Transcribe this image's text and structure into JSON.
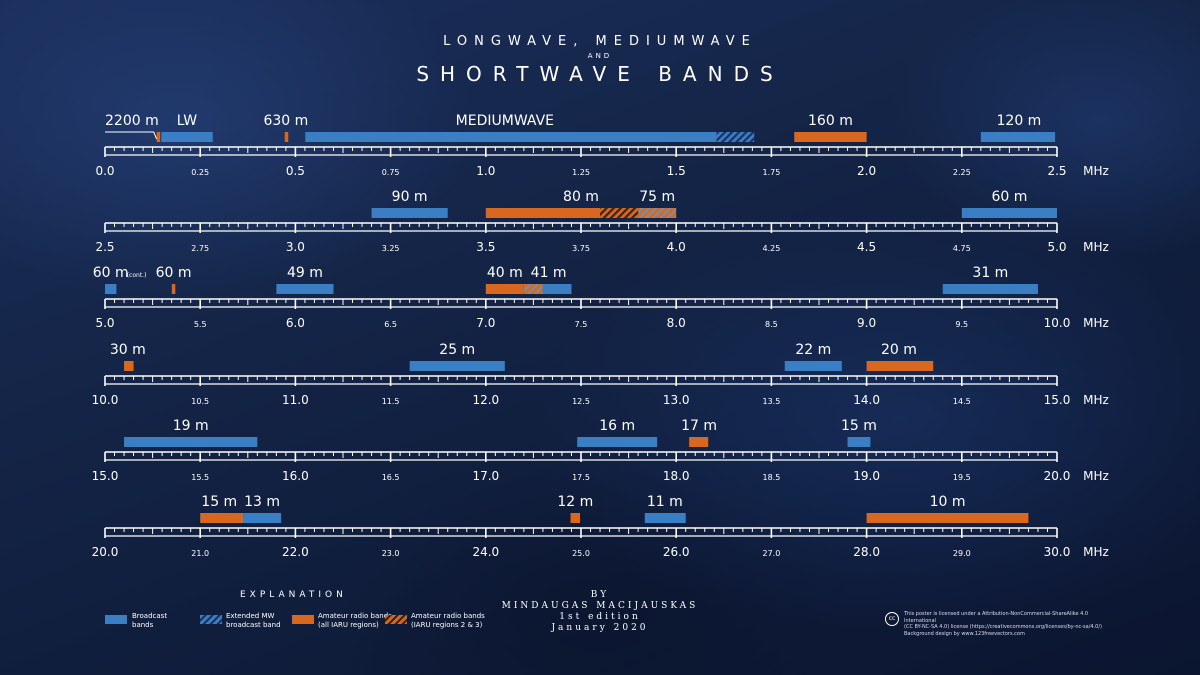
{
  "title": {
    "line1": "LONGWAVE, MEDIUMWAVE",
    "and": "AND",
    "line2": "SHORTWAVE BANDS"
  },
  "unit": "MHz",
  "colors": {
    "broadcast": "#3a7ec4",
    "amateur": "#d8681f",
    "hatch": "#1d3160"
  },
  "chart_data": {
    "type": "bar",
    "title": "LONGWAVE, MEDIUMWAVE AND SHORTWAVE BANDS",
    "xlabel": "MHz",
    "rows": [
      {
        "range": [
          0.0,
          2.5
        ],
        "ticks": [
          "0.0",
          "0.25",
          "0.5",
          "0.75",
          "1.0",
          "1.25",
          "1.5",
          "1.75",
          "2.0",
          "2.25",
          "2.5"
        ],
        "bands": [
          {
            "start": 0.1357,
            "end": 0.1378,
            "kind": "amateur"
          },
          {
            "start": 0.148,
            "end": 0.283,
            "kind": "broadcast"
          },
          {
            "start": 0.472,
            "end": 0.479,
            "kind": "amateur"
          },
          {
            "start": 0.526,
            "end": 1.606,
            "kind": "broadcast"
          },
          {
            "start": 1.606,
            "end": 1.705,
            "kind": "broadcast-ext"
          },
          {
            "start": 1.81,
            "end": 2.0,
            "kind": "amateur"
          },
          {
            "start": 2.3,
            "end": 2.495,
            "kind": "broadcast"
          }
        ],
        "labels": [
          {
            "text": "2200 m",
            "at": 0.0,
            "anchor": "start"
          },
          {
            "text": "LW",
            "at": 0.215,
            "anchor": "middle"
          },
          {
            "text": "630 m",
            "at": 0.475,
            "anchor": "middle"
          },
          {
            "text": "MEDIUMWAVE",
            "at": 1.05,
            "anchor": "middle"
          },
          {
            "text": "160 m",
            "at": 1.905,
            "anchor": "middle"
          },
          {
            "text": "120 m",
            "at": 2.4,
            "anchor": "middle"
          }
        ]
      },
      {
        "range": [
          2.5,
          5.0
        ],
        "ticks": [
          "2.5",
          "2.75",
          "3.0",
          "3.25",
          "3.5",
          "3.75",
          "4.0",
          "4.25",
          "4.5",
          "4.75",
          "5.0"
        ],
        "bands": [
          {
            "start": 3.2,
            "end": 3.4,
            "kind": "broadcast"
          },
          {
            "start": 3.5,
            "end": 3.8,
            "kind": "amateur"
          },
          {
            "start": 3.8,
            "end": 3.9,
            "kind": "amateur-r23"
          },
          {
            "start": 3.9,
            "end": 4.0,
            "kind": "amateur-broadcast"
          },
          {
            "start": 4.75,
            "end": 5.0,
            "kind": "broadcast"
          }
        ],
        "labels": [
          {
            "text": "90 m",
            "at": 3.3,
            "anchor": "middle"
          },
          {
            "text": "80 m",
            "at": 3.75,
            "anchor": "middle"
          },
          {
            "text": "75 m",
            "at": 3.95,
            "anchor": "middle"
          },
          {
            "text": "60 m",
            "at": 4.875,
            "anchor": "middle"
          }
        ]
      },
      {
        "range": [
          5.0,
          10.0
        ],
        "ticks": [
          "5.0",
          "5.5",
          "6.0",
          "6.5",
          "7.0",
          "7.5",
          "8.0",
          "8.5",
          "9.0",
          "9.5",
          "10.0"
        ],
        "bands": [
          {
            "start": 5.0,
            "end": 5.06,
            "kind": "broadcast"
          },
          {
            "start": 5.351,
            "end": 5.367,
            "kind": "amateur"
          },
          {
            "start": 5.9,
            "end": 6.2,
            "kind": "broadcast"
          },
          {
            "start": 7.0,
            "end": 7.2,
            "kind": "amateur"
          },
          {
            "start": 7.2,
            "end": 7.3,
            "kind": "amateur-broadcast"
          },
          {
            "start": 7.3,
            "end": 7.45,
            "kind": "broadcast"
          },
          {
            "start": 9.4,
            "end": 9.9,
            "kind": "broadcast"
          }
        ],
        "labels": [
          {
            "text": "60 m",
            "at": 5.03,
            "anchor": "middle",
            "note": "(cont.)"
          },
          {
            "text": "60 m",
            "at": 5.36,
            "anchor": "middle"
          },
          {
            "text": "49 m",
            "at": 6.05,
            "anchor": "middle"
          },
          {
            "text": "40 m",
            "at": 7.1,
            "anchor": "middle"
          },
          {
            "text": "41 m",
            "at": 7.33,
            "anchor": "middle"
          },
          {
            "text": "31 m",
            "at": 9.65,
            "anchor": "middle"
          }
        ]
      },
      {
        "range": [
          10.0,
          15.0
        ],
        "ticks": [
          "10.0",
          "10.5",
          "11.0",
          "11.5",
          "12.0",
          "12.5",
          "13.0",
          "13.5",
          "14.0",
          "14.5",
          "15.0"
        ],
        "bands": [
          {
            "start": 10.1,
            "end": 10.15,
            "kind": "amateur"
          },
          {
            "start": 11.6,
            "end": 12.1,
            "kind": "broadcast"
          },
          {
            "start": 13.57,
            "end": 13.87,
            "kind": "broadcast"
          },
          {
            "start": 14.0,
            "end": 14.35,
            "kind": "amateur"
          }
        ],
        "labels": [
          {
            "text": "30 m",
            "at": 10.12,
            "anchor": "middle"
          },
          {
            "text": "25 m",
            "at": 11.85,
            "anchor": "middle"
          },
          {
            "text": "22 m",
            "at": 13.72,
            "anchor": "middle"
          },
          {
            "text": "20 m",
            "at": 14.17,
            "anchor": "middle"
          }
        ]
      },
      {
        "range": [
          15.0,
          20.0
        ],
        "ticks": [
          "15.0",
          "15.5",
          "16.0",
          "16.5",
          "17.0",
          "17.5",
          "18.0",
          "18.5",
          "19.0",
          "19.5",
          "20.0"
        ],
        "bands": [
          {
            "start": 15.1,
            "end": 15.8,
            "kind": "broadcast"
          },
          {
            "start": 17.48,
            "end": 17.9,
            "kind": "broadcast"
          },
          {
            "start": 18.068,
            "end": 18.168,
            "kind": "amateur"
          },
          {
            "start": 18.9,
            "end": 19.02,
            "kind": "broadcast"
          }
        ],
        "labels": [
          {
            "text": "19 m",
            "at": 15.45,
            "anchor": "middle"
          },
          {
            "text": "16 m",
            "at": 17.69,
            "anchor": "middle"
          },
          {
            "text": "17 m",
            "at": 18.12,
            "anchor": "middle"
          },
          {
            "text": "15 m",
            "at": 18.96,
            "anchor": "middle"
          }
        ]
      },
      {
        "range": [
          20.0,
          30.0
        ],
        "ticks": [
          "20.0",
          "21.0",
          "22.0",
          "23.0",
          "24.0",
          "25.0",
          "26.0",
          "27.0",
          "28.0",
          "29.0",
          "30.0"
        ],
        "bands": [
          {
            "start": 21.0,
            "end": 21.45,
            "kind": "amateur"
          },
          {
            "start": 21.45,
            "end": 21.85,
            "kind": "broadcast"
          },
          {
            "start": 24.89,
            "end": 24.99,
            "kind": "amateur"
          },
          {
            "start": 25.67,
            "end": 26.1,
            "kind": "broadcast"
          },
          {
            "start": 28.0,
            "end": 29.7,
            "kind": "amateur"
          }
        ],
        "labels": [
          {
            "text": "15 m",
            "at": 21.2,
            "anchor": "middle"
          },
          {
            "text": "13 m",
            "at": 21.65,
            "anchor": "middle"
          },
          {
            "text": "12 m",
            "at": 24.94,
            "anchor": "middle"
          },
          {
            "text": "11 m",
            "at": 25.88,
            "anchor": "middle"
          },
          {
            "text": "10 m",
            "at": 28.85,
            "anchor": "middle"
          }
        ]
      }
    ]
  },
  "legend": {
    "heading": "EXPLANATION",
    "items": [
      {
        "label1": "Broadcast",
        "label2": "bands",
        "kind": "broadcast"
      },
      {
        "label1": "Extended MW",
        "label2": "broadcast band",
        "kind": "broadcast-ext"
      },
      {
        "label1": "Amateur radio bands",
        "label2": "(all IARU regions)",
        "kind": "amateur"
      },
      {
        "label1": "Amateur radio bands",
        "label2": "(IARU regions 2 & 3)",
        "kind": "amateur-r23"
      }
    ]
  },
  "credit": {
    "by": "BY",
    "author": "MINDAUGAS MACIJAUSKAS",
    "edition": "1st edition",
    "date": "January 2020"
  },
  "license": {
    "icon": "cc",
    "line1": "This poster is licensed under a Attribution-NonCommercial-ShareAlike 4.0 International",
    "line2": "(CC BY-NC-SA 4.0) license (https://creativecommons.org/licenses/by-nc-sa/4.0/)",
    "line3": "Background design by www.123freevectors.com"
  }
}
